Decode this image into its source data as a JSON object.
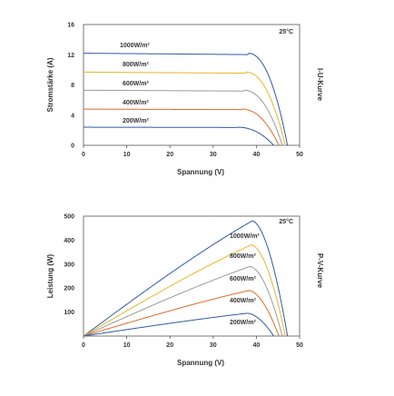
{
  "chart_data": [
    {
      "type": "line",
      "side_label": "I-U-Kurve",
      "temperature": "25°C",
      "xlabel": "Spannung (V)",
      "ylabel": "Stromstärke (A)",
      "xlim": [
        0,
        50
      ],
      "ylim": [
        0,
        16
      ],
      "x_ticks": [
        "0",
        "10",
        "20",
        "30",
        "40",
        "50"
      ],
      "y_ticks": [
        "0",
        "4",
        "8",
        "12",
        "16"
      ],
      "grid": false,
      "series": [
        {
          "name": "1000W/m²",
          "color": "#2e5aa8",
          "isc": 12.2,
          "voc": 47.2,
          "knee": 38
        },
        {
          "name": "800W/m²",
          "color": "#e8b52a",
          "isc": 9.7,
          "voc": 46.7,
          "knee": 37.5
        },
        {
          "name": "600W/m²",
          "color": "#9a9a9a",
          "isc": 7.3,
          "voc": 46.0,
          "knee": 37
        },
        {
          "name": "400W/m²",
          "color": "#e06a2a",
          "isc": 4.8,
          "voc": 45.2,
          "knee": 36.5
        },
        {
          "name": "200W/m²",
          "color": "#2e5aa8",
          "isc": 2.4,
          "voc": 44.0,
          "knee": 35.5
        }
      ]
    },
    {
      "type": "line",
      "side_label": "P-V-Kurve",
      "temperature": "25°C",
      "xlabel": "Spannung (V)",
      "ylabel": "Leistung (W)",
      "xlim": [
        0,
        50
      ],
      "ylim": [
        0,
        500
      ],
      "x_ticks": [
        "0",
        "10",
        "20",
        "30",
        "40",
        "50"
      ],
      "y_ticks": [
        "100",
        "200",
        "300",
        "400",
        "500"
      ],
      "grid": false,
      "series": [
        {
          "name": "1000W/m²",
          "color": "#2e5aa8",
          "pmax": 480,
          "vmp": 39,
          "voc": 47.2
        },
        {
          "name": "800W/m²",
          "color": "#e8b52a",
          "pmax": 380,
          "vmp": 38.8,
          "voc": 46.7
        },
        {
          "name": "600W/m²",
          "color": "#9a9a9a",
          "pmax": 290,
          "vmp": 38.5,
          "voc": 46.0
        },
        {
          "name": "400W/m²",
          "color": "#e06a2a",
          "pmax": 190,
          "vmp": 38.2,
          "voc": 45.2
        },
        {
          "name": "200W/m²",
          "color": "#2e5aa8",
          "pmax": 95,
          "vmp": 37.8,
          "voc": 44.0
        }
      ]
    }
  ]
}
